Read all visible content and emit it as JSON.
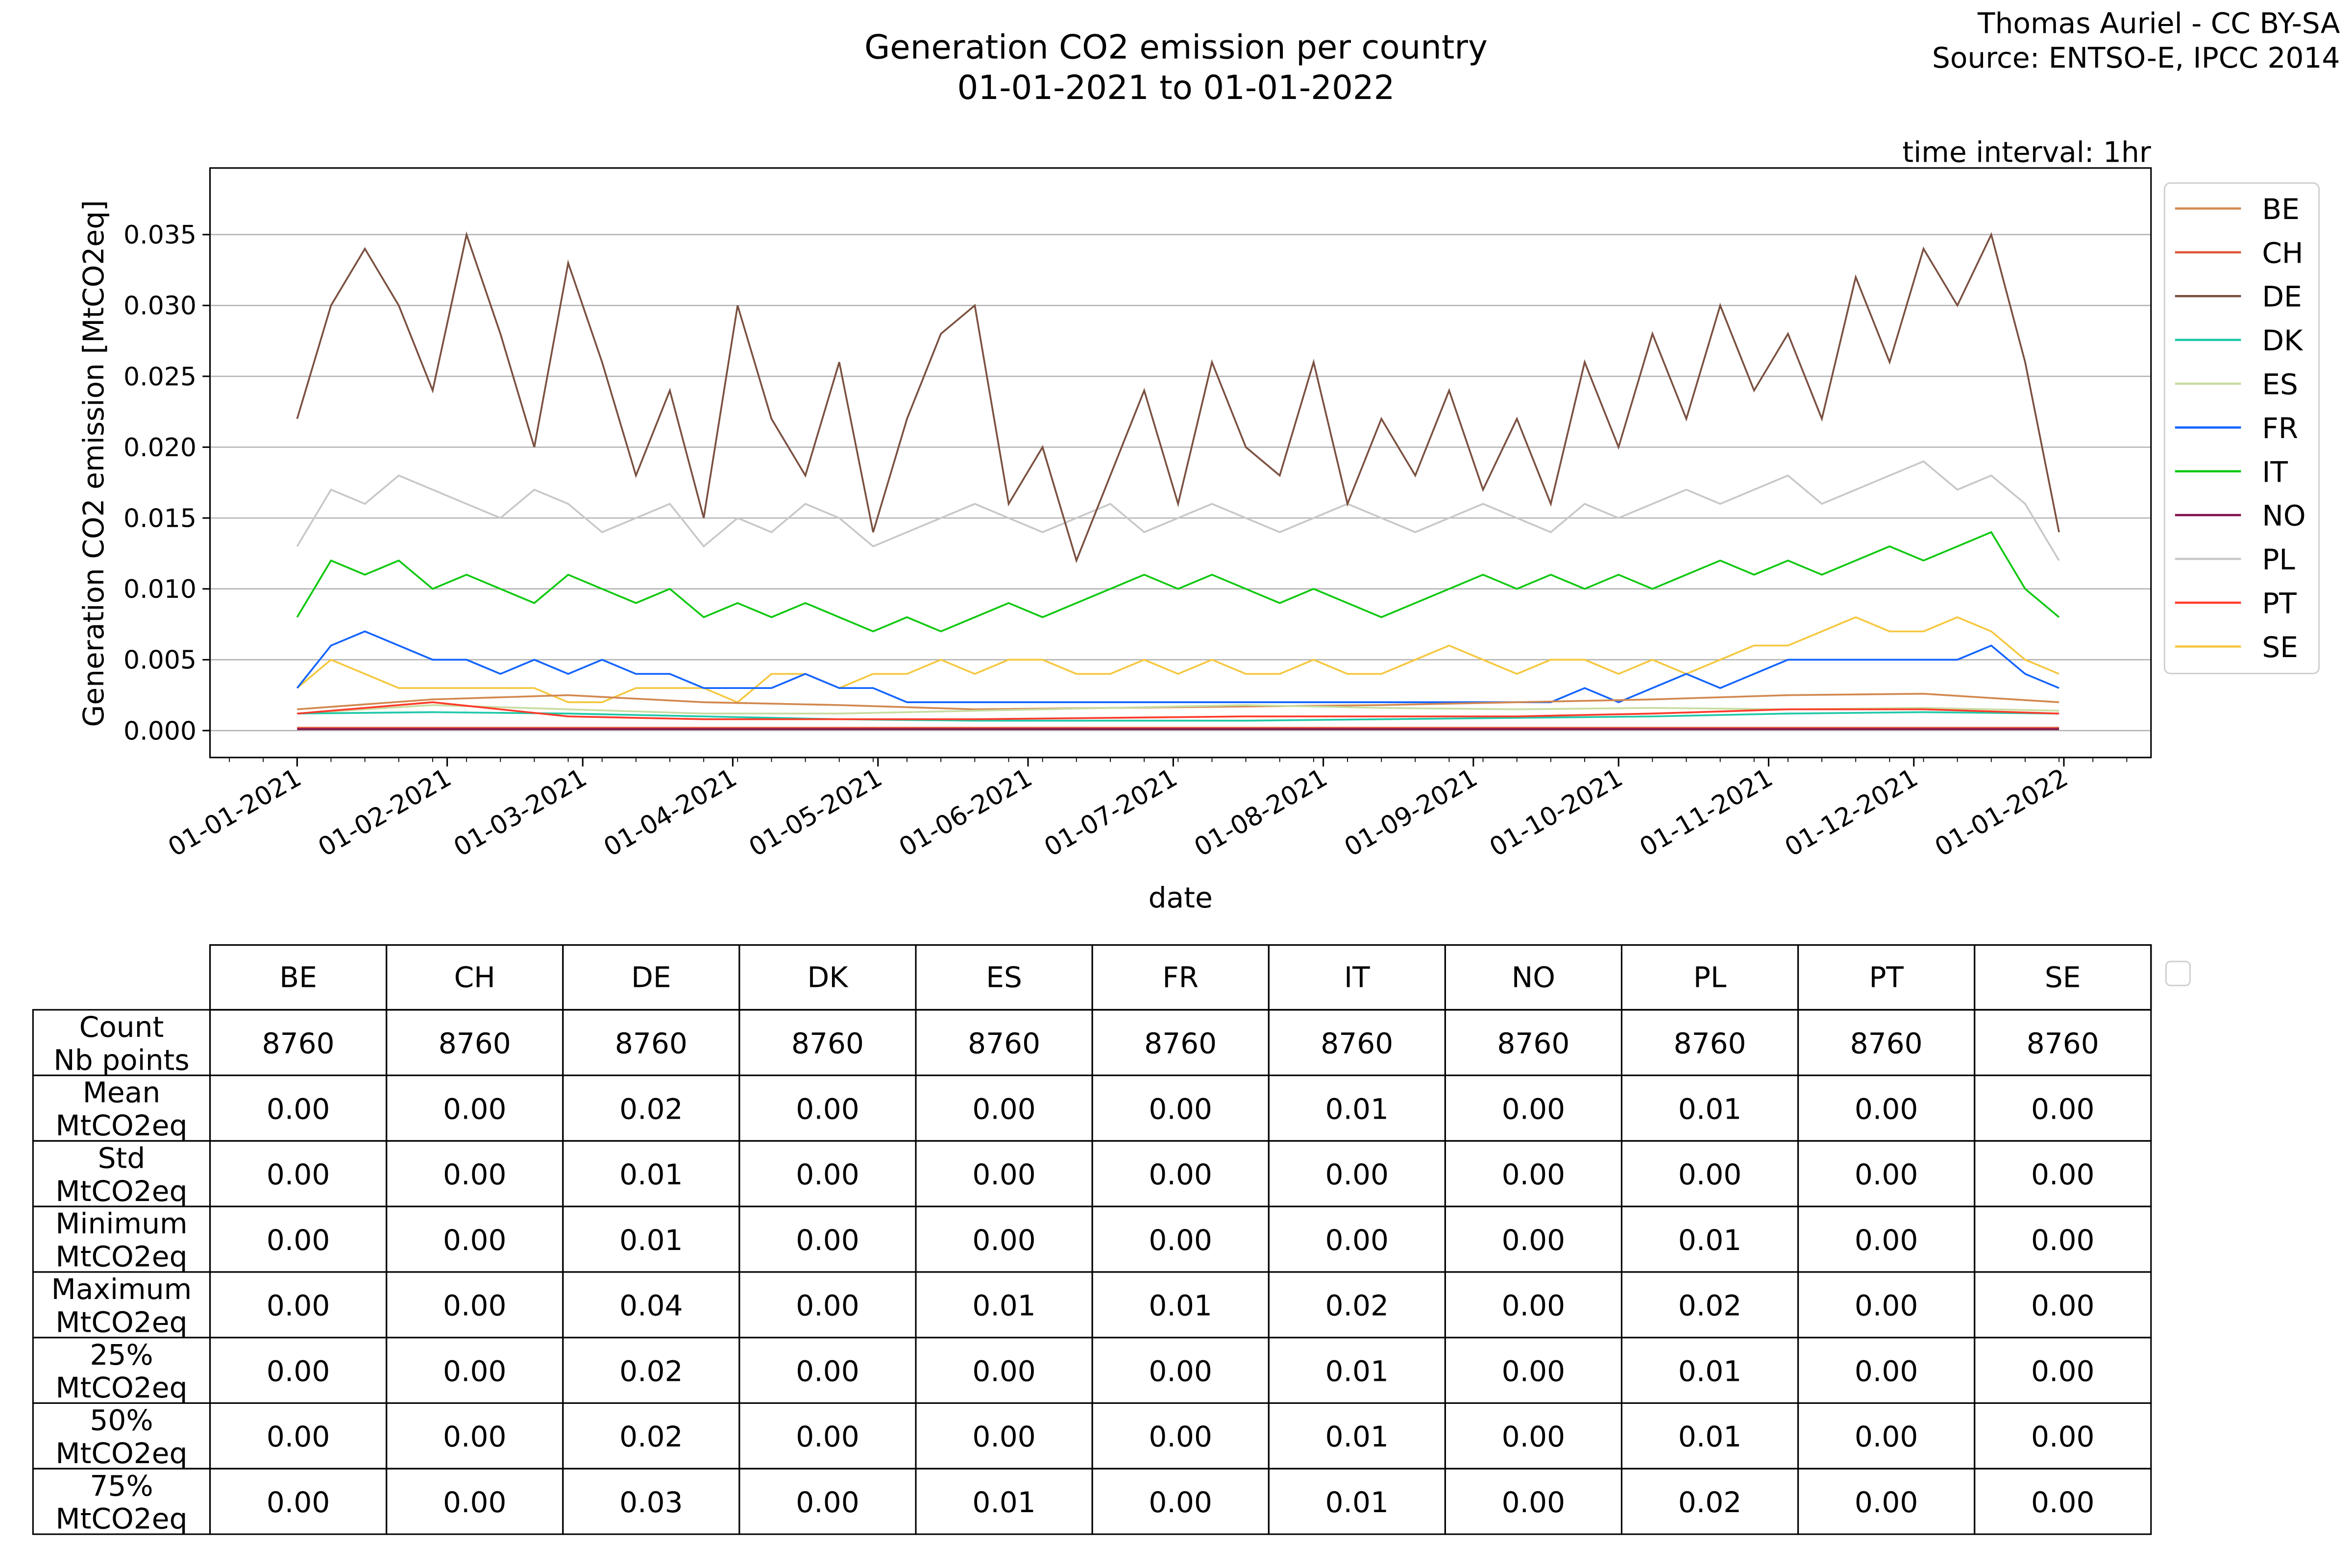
{
  "chart_data": {
    "type": "line",
    "title_line1": "Generation CO2 emission per country",
    "title_line2": "01-01-2021 to 01-01-2022",
    "credit_line1": "Thomas Auriel - CC BY-SA",
    "credit_line2": "Source: ENTSO-E, IPCC 2014",
    "interval_note": "time interval: 1hr",
    "xlabel": "date",
    "ylabel": "Generation CO2 emission [MtCO2eq]",
    "x_unit": "days since 01-01-2021",
    "xlim": [
      -18,
      383
    ],
    "ylim": [
      -0.0019,
      0.0397
    ],
    "grid": "horizontal",
    "legend_position": "right-outside-top",
    "y_ticks": [
      "0.000",
      "0.005",
      "0.010",
      "0.015",
      "0.020",
      "0.025",
      "0.030",
      "0.035"
    ],
    "y_tick_values": [
      0,
      0.005,
      0.01,
      0.015,
      0.02,
      0.025,
      0.03,
      0.035
    ],
    "x_ticks": [
      {
        "label": "01-01-2021",
        "day": 0
      },
      {
        "label": "01-02-2021",
        "day": 31
      },
      {
        "label": "01-03-2021",
        "day": 59
      },
      {
        "label": "01-04-2021",
        "day": 90
      },
      {
        "label": "01-05-2021",
        "day": 120
      },
      {
        "label": "01-06-2021",
        "day": 151
      },
      {
        "label": "01-07-2021",
        "day": 181
      },
      {
        "label": "01-08-2021",
        "day": 212
      },
      {
        "label": "01-09-2021",
        "day": 243
      },
      {
        "label": "01-10-2021",
        "day": 273
      },
      {
        "label": "01-11-2021",
        "day": 304
      },
      {
        "label": "01-12-2021",
        "day": 334
      },
      {
        "label": "01-01-2022",
        "day": 365
      }
    ],
    "series": [
      {
        "name": "PL",
        "color": "#c8c8c8",
        "step_days": 7,
        "values": [
          0.013,
          0.017,
          0.016,
          0.018,
          0.017,
          0.016,
          0.015,
          0.017,
          0.016,
          0.014,
          0.015,
          0.016,
          0.013,
          0.015,
          0.014,
          0.016,
          0.015,
          0.013,
          0.014,
          0.015,
          0.016,
          0.015,
          0.014,
          0.015,
          0.016,
          0.014,
          0.015,
          0.016,
          0.015,
          0.014,
          0.015,
          0.016,
          0.015,
          0.014,
          0.015,
          0.016,
          0.015,
          0.014,
          0.016,
          0.015,
          0.016,
          0.017,
          0.016,
          0.017,
          0.018,
          0.016,
          0.017,
          0.018,
          0.019,
          0.017,
          0.018,
          0.016,
          0.012
        ]
      },
      {
        "name": "DE",
        "color": "#7b5141",
        "step_days": 7,
        "values": [
          0.022,
          0.03,
          0.034,
          0.03,
          0.024,
          0.035,
          0.028,
          0.02,
          0.033,
          0.026,
          0.018,
          0.024,
          0.015,
          0.03,
          0.022,
          0.018,
          0.026,
          0.014,
          0.022,
          0.028,
          0.03,
          0.016,
          0.02,
          0.012,
          0.018,
          0.024,
          0.016,
          0.026,
          0.02,
          0.018,
          0.026,
          0.016,
          0.022,
          0.018,
          0.024,
          0.017,
          0.022,
          0.016,
          0.026,
          0.02,
          0.028,
          0.022,
          0.03,
          0.024,
          0.028,
          0.022,
          0.032,
          0.026,
          0.034,
          0.03,
          0.035,
          0.026,
          0.014
        ]
      },
      {
        "name": "IT",
        "color": "#10c810",
        "step_days": 7,
        "values": [
          0.008,
          0.012,
          0.011,
          0.012,
          0.01,
          0.011,
          0.01,
          0.009,
          0.011,
          0.01,
          0.009,
          0.01,
          0.008,
          0.009,
          0.008,
          0.009,
          0.008,
          0.007,
          0.008,
          0.007,
          0.008,
          0.009,
          0.008,
          0.009,
          0.01,
          0.011,
          0.01,
          0.011,
          0.01,
          0.009,
          0.01,
          0.009,
          0.008,
          0.009,
          0.01,
          0.011,
          0.01,
          0.011,
          0.01,
          0.011,
          0.01,
          0.011,
          0.012,
          0.011,
          0.012,
          0.011,
          0.012,
          0.013,
          0.012,
          0.013,
          0.014,
          0.01,
          0.008
        ]
      },
      {
        "name": "SE",
        "color": "#f5c842",
        "step_days": 7,
        "values": [
          0.003,
          0.005,
          0.004,
          0.003,
          0.003,
          0.003,
          0.003,
          0.003,
          0.002,
          0.002,
          0.003,
          0.003,
          0.003,
          0.002,
          0.004,
          0.004,
          0.003,
          0.004,
          0.004,
          0.005,
          0.004,
          0.005,
          0.005,
          0.004,
          0.004,
          0.005,
          0.004,
          0.005,
          0.004,
          0.004,
          0.005,
          0.004,
          0.004,
          0.005,
          0.006,
          0.005,
          0.004,
          0.005,
          0.005,
          0.004,
          0.005,
          0.004,
          0.005,
          0.006,
          0.006,
          0.007,
          0.008,
          0.007,
          0.007,
          0.008,
          0.007,
          0.005,
          0.004
        ]
      },
      {
        "name": "FR",
        "color": "#1464ff",
        "step_days": 7,
        "values": [
          0.003,
          0.006,
          0.007,
          0.006,
          0.005,
          0.005,
          0.004,
          0.005,
          0.004,
          0.005,
          0.004,
          0.004,
          0.003,
          0.003,
          0.003,
          0.004,
          0.003,
          0.003,
          0.002,
          0.002,
          0.002,
          0.002,
          0.002,
          0.002,
          0.002,
          0.002,
          0.002,
          0.002,
          0.002,
          0.002,
          0.002,
          0.002,
          0.002,
          0.002,
          0.002,
          0.002,
          0.002,
          0.002,
          0.003,
          0.002,
          0.003,
          0.004,
          0.003,
          0.004,
          0.005,
          0.005,
          0.005,
          0.005,
          0.005,
          0.005,
          0.006,
          0.004,
          0.003
        ]
      },
      {
        "name": "BE",
        "color": "#d2884f",
        "step_days": 28,
        "values": [
          0.0015,
          0.0022,
          0.0025,
          0.002,
          0.0018,
          0.0015,
          0.0016,
          0.0017,
          0.0018,
          0.002,
          0.0022,
          0.0025,
          0.0026,
          0.002
        ]
      },
      {
        "name": "ES",
        "color": "#c8dca0",
        "step_days": 28,
        "values": [
          0.0012,
          0.0018,
          0.0015,
          0.0012,
          0.0012,
          0.0014,
          0.0016,
          0.0018,
          0.0016,
          0.0015,
          0.0016,
          0.0015,
          0.0016,
          0.0014
        ]
      },
      {
        "name": "DK",
        "color": "#20c8a8",
        "step_days": 28,
        "values": [
          0.0012,
          0.0013,
          0.0012,
          0.001,
          0.0008,
          0.0007,
          0.0007,
          0.0007,
          0.0008,
          0.0009,
          0.001,
          0.0012,
          0.0013,
          0.0012
        ]
      },
      {
        "name": "PT",
        "color": "#ff3a2a",
        "step_days": 28,
        "values": [
          0.0012,
          0.002,
          0.001,
          0.0008,
          0.0008,
          0.0008,
          0.0009,
          0.001,
          0.001,
          0.001,
          0.0012,
          0.0015,
          0.0015,
          0.0012
        ]
      },
      {
        "name": "CH",
        "color": "#e0563a",
        "step_days": 28,
        "values": [
          0.0002,
          0.0002,
          0.0002,
          0.0002,
          0.0002,
          0.0002,
          0.0002,
          0.0002,
          0.0002,
          0.0002,
          0.0002,
          0.0002,
          0.0002,
          0.0002
        ]
      },
      {
        "name": "NO",
        "color": "#80104a",
        "step_days": 28,
        "values": [
          0.0001,
          0.0001,
          0.0001,
          0.0001,
          0.0001,
          0.0001,
          0.0001,
          0.0001,
          0.0001,
          0.0001,
          0.0001,
          0.0001,
          0.0001,
          0.0001
        ]
      }
    ],
    "legend_order": [
      "BE",
      "CH",
      "DE",
      "DK",
      "ES",
      "FR",
      "IT",
      "NO",
      "PL",
      "PT",
      "SE"
    ]
  },
  "table": {
    "columns": [
      "BE",
      "CH",
      "DE",
      "DK",
      "ES",
      "FR",
      "IT",
      "NO",
      "PL",
      "PT",
      "SE"
    ],
    "rows": [
      {
        "label1": "Count",
        "label2": "Nb points",
        "values": [
          "8760",
          "8760",
          "8760",
          "8760",
          "8760",
          "8760",
          "8760",
          "8760",
          "8760",
          "8760",
          "8760"
        ]
      },
      {
        "label1": "Mean",
        "label2": "MtCO2eq",
        "values": [
          "0.00",
          "0.00",
          "0.02",
          "0.00",
          "0.00",
          "0.00",
          "0.01",
          "0.00",
          "0.01",
          "0.00",
          "0.00"
        ]
      },
      {
        "label1": "Std",
        "label2": "MtCO2eq",
        "values": [
          "0.00",
          "0.00",
          "0.01",
          "0.00",
          "0.00",
          "0.00",
          "0.00",
          "0.00",
          "0.00",
          "0.00",
          "0.00"
        ]
      },
      {
        "label1": "Minimum",
        "label2": "MtCO2eq",
        "values": [
          "0.00",
          "0.00",
          "0.01",
          "0.00",
          "0.00",
          "0.00",
          "0.00",
          "0.00",
          "0.01",
          "0.00",
          "0.00"
        ]
      },
      {
        "label1": "Maximum",
        "label2": "MtCO2eq",
        "values": [
          "0.00",
          "0.00",
          "0.04",
          "0.00",
          "0.01",
          "0.01",
          "0.02",
          "0.00",
          "0.02",
          "0.00",
          "0.00"
        ]
      },
      {
        "label1": "25%",
        "label2": "MtCO2eq",
        "values": [
          "0.00",
          "0.00",
          "0.02",
          "0.00",
          "0.00",
          "0.00",
          "0.01",
          "0.00",
          "0.01",
          "0.00",
          "0.00"
        ]
      },
      {
        "label1": "50%",
        "label2": "MtCO2eq",
        "values": [
          "0.00",
          "0.00",
          "0.02",
          "0.00",
          "0.00",
          "0.00",
          "0.01",
          "0.00",
          "0.01",
          "0.00",
          "0.00"
        ]
      },
      {
        "label1": "75%",
        "label2": "MtCO2eq",
        "values": [
          "0.00",
          "0.00",
          "0.03",
          "0.00",
          "0.01",
          "0.00",
          "0.01",
          "0.00",
          "0.02",
          "0.00",
          "0.00"
        ]
      }
    ]
  }
}
